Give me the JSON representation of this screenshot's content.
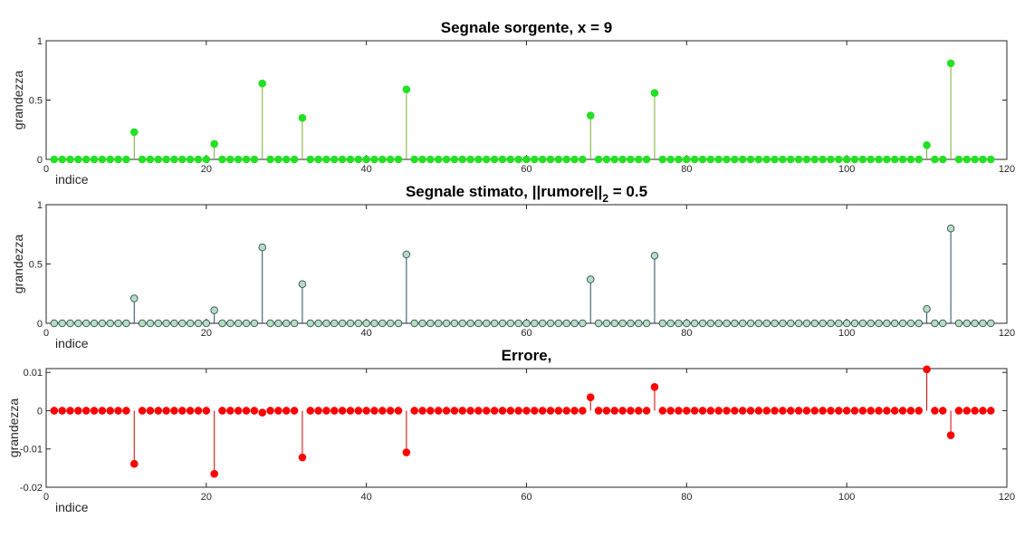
{
  "chart_data": [
    {
      "type": "stem",
      "title": "Segnale sorgente, x = 9",
      "xlabel": "indice",
      "ylabel": "grandezza",
      "xlim": [
        0,
        120
      ],
      "ylim": [
        0,
        1
      ],
      "xticks": [
        0,
        20,
        40,
        60,
        80,
        100,
        120
      ],
      "yticks": [
        0,
        0.5,
        1
      ],
      "ytick_labels": [
        "0",
        "0.5",
        "1"
      ],
      "n": 118,
      "nonzero": [
        {
          "x": 11,
          "y": 0.23
        },
        {
          "x": 21,
          "y": 0.13
        },
        {
          "x": 27,
          "y": 0.64
        },
        {
          "x": 32,
          "y": 0.35
        },
        {
          "x": 45,
          "y": 0.59
        },
        {
          "x": 68,
          "y": 0.37
        },
        {
          "x": 76,
          "y": 0.56
        },
        {
          "x": 110,
          "y": 0.12
        },
        {
          "x": 113,
          "y": 0.81
        }
      ],
      "marker": "filled",
      "marker_color": "#22e022",
      "stem_color": "#77ac30"
    },
    {
      "type": "stem",
      "title_main": "Segnale stimato, ||rumore||",
      "title_sub": "2",
      "title_tail": " = 0.5",
      "xlabel": "indice",
      "ylabel": "grandezza",
      "xlim": [
        0,
        120
      ],
      "ylim": [
        0,
        1
      ],
      "xticks": [
        0,
        20,
        40,
        60,
        80,
        100,
        120
      ],
      "yticks": [
        0,
        0.5,
        1
      ],
      "ytick_labels": [
        "0",
        "0.5",
        "1"
      ],
      "n": 118,
      "nonzero": [
        {
          "x": 11,
          "y": 0.21
        },
        {
          "x": 21,
          "y": 0.11
        },
        {
          "x": 27,
          "y": 0.64
        },
        {
          "x": 32,
          "y": 0.33
        },
        {
          "x": 45,
          "y": 0.58
        },
        {
          "x": 68,
          "y": 0.37
        },
        {
          "x": 76,
          "y": 0.57
        },
        {
          "x": 110,
          "y": 0.12
        },
        {
          "x": 113,
          "y": 0.8
        }
      ],
      "marker": "hollow",
      "marker_color": "#b7dcc3",
      "marker_edge": "#2f4f4f",
      "stem_color": "#1f4e5e"
    },
    {
      "type": "stem",
      "title": "Errore,",
      "xlabel": "indice",
      "ylabel": "grandezza",
      "xlim": [
        0,
        120
      ],
      "ylim": [
        -0.02,
        0.011
      ],
      "xticks": [
        0,
        20,
        40,
        60,
        80,
        100,
        120
      ],
      "yticks": [
        -0.02,
        -0.01,
        0,
        0.01
      ],
      "ytick_labels": [
        "-0.02",
        "-0.01",
        "0",
        "0.01"
      ],
      "n": 118,
      "nonzero": [
        {
          "x": 11,
          "y": -0.0139
        },
        {
          "x": 21,
          "y": -0.0165
        },
        {
          "x": 27,
          "y": -0.0005
        },
        {
          "x": 32,
          "y": -0.0122
        },
        {
          "x": 45,
          "y": -0.0109
        },
        {
          "x": 68,
          "y": 0.0035
        },
        {
          "x": 76,
          "y": 0.0062
        },
        {
          "x": 110,
          "y": 0.0108
        },
        {
          "x": 113,
          "y": -0.0064
        }
      ],
      "marker": "filled",
      "marker_color": "#ff0000",
      "stem_color": "#cc0000"
    }
  ]
}
